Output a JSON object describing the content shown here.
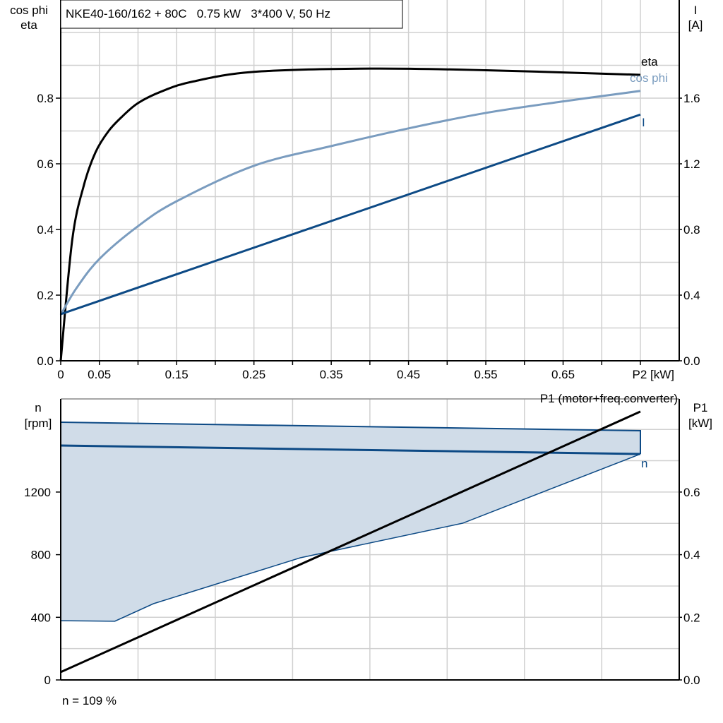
{
  "chart_data": [
    {
      "type": "line",
      "title": "NKE40-160/162 + 80C   0.75 kW   3*400 V, 50 Hz",
      "xlabel": "P2 [kW]",
      "ylabel_left": [
        "cos phi",
        "eta"
      ],
      "ylabel_right": [
        "I",
        "[A]"
      ],
      "xlim": [
        0,
        0.8
      ],
      "ylim_left": [
        0,
        1.0
      ],
      "ylim_right": [
        0,
        2.0
      ],
      "x_tick_labels": [
        "0",
        "0.05",
        "0.15",
        "0.25",
        "0.35",
        "0.45",
        "0.55",
        "0.65"
      ],
      "x_tick_values": [
        0,
        0.05,
        0.15,
        0.25,
        0.35,
        0.45,
        0.55,
        0.65
      ],
      "y_left_ticks": [
        "0.0",
        "0.2",
        "0.4",
        "0.6",
        "0.8"
      ],
      "y_right_ticks": [
        "0.0",
        "0.4",
        "0.8",
        "1.2",
        "1.6"
      ],
      "grid": true,
      "series": [
        {
          "name": "eta",
          "axis": "left",
          "color": "#000000",
          "x": [
            0,
            0.015,
            0.03,
            0.045,
            0.062,
            0.08,
            0.1,
            0.13,
            0.17,
            0.25,
            0.4,
            0.55,
            0.75
          ],
          "y": [
            0,
            0.37,
            0.535,
            0.635,
            0.7,
            0.745,
            0.785,
            0.82,
            0.85,
            0.88,
            0.89,
            0.885,
            0.871
          ]
        },
        {
          "name": "cos phi",
          "axis": "left",
          "color": "#7a9cbf",
          "x": [
            0,
            0.02,
            0.05,
            0.1,
            0.15,
            0.25,
            0.35,
            0.45,
            0.55,
            0.65,
            0.75
          ],
          "y": [
            0.14,
            0.22,
            0.31,
            0.41,
            0.486,
            0.594,
            0.654,
            0.708,
            0.755,
            0.79,
            0.822
          ]
        },
        {
          "name": "I",
          "axis": "right",
          "color": "#0d4a85",
          "x": [
            0,
            0.75
          ],
          "y": [
            0.284,
            1.5
          ]
        }
      ]
    },
    {
      "type": "line",
      "xlim": [
        0,
        0.8
      ],
      "ylabel_left": [
        "n",
        "[rpm]"
      ],
      "ylabel_right": [
        "P1",
        "[kW]"
      ],
      "ylim_left": [
        0,
        1800
      ],
      "ylim_right": [
        0,
        0.9
      ],
      "y_left_ticks": [
        "0",
        "400",
        "800",
        "1200"
      ],
      "y_right_ticks": [
        "0.0",
        "0.2",
        "0.4",
        "0.6"
      ],
      "grid": true,
      "band": {
        "color": "#d0dce8",
        "edge_color": "#0d4a85",
        "upper": {
          "x": [
            0,
            0.75
          ],
          "y": [
            1646,
            1592
          ]
        },
        "lower": {
          "x": [
            0,
            0.07,
            0.12,
            0.31,
            0.52,
            0.75
          ],
          "y": [
            378,
            375,
            487,
            780,
            1001,
            1443
          ]
        }
      },
      "series": [
        {
          "name": "n",
          "axis": "left",
          "color": "#0d4a85",
          "x": [
            0,
            0.75
          ],
          "y": [
            1497,
            1443
          ]
        },
        {
          "name": "P1 (motor+freq.converter)",
          "axis": "right",
          "color": "#000000",
          "x": [
            0,
            0.75
          ],
          "y": [
            0.025,
            0.857
          ]
        }
      ],
      "annotation": "n = 109 %"
    }
  ]
}
